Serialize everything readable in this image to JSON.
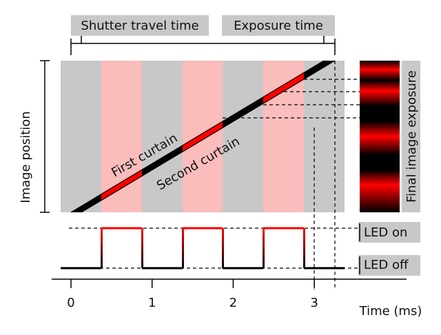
{
  "header": {
    "shutter_travel_time": "Shutter travel time",
    "exposure_time": "Exposure time"
  },
  "labels": {
    "image_position": "Image position",
    "first_curtain": "First curtain",
    "second_curtain": "Second curtain",
    "final_image_exposure": "Final image exposure",
    "led_on": "LED on",
    "led_off": "LED off"
  },
  "axis": {
    "title": "Time (ms)",
    "ticks": [
      0,
      1,
      2,
      3
    ]
  }
}
